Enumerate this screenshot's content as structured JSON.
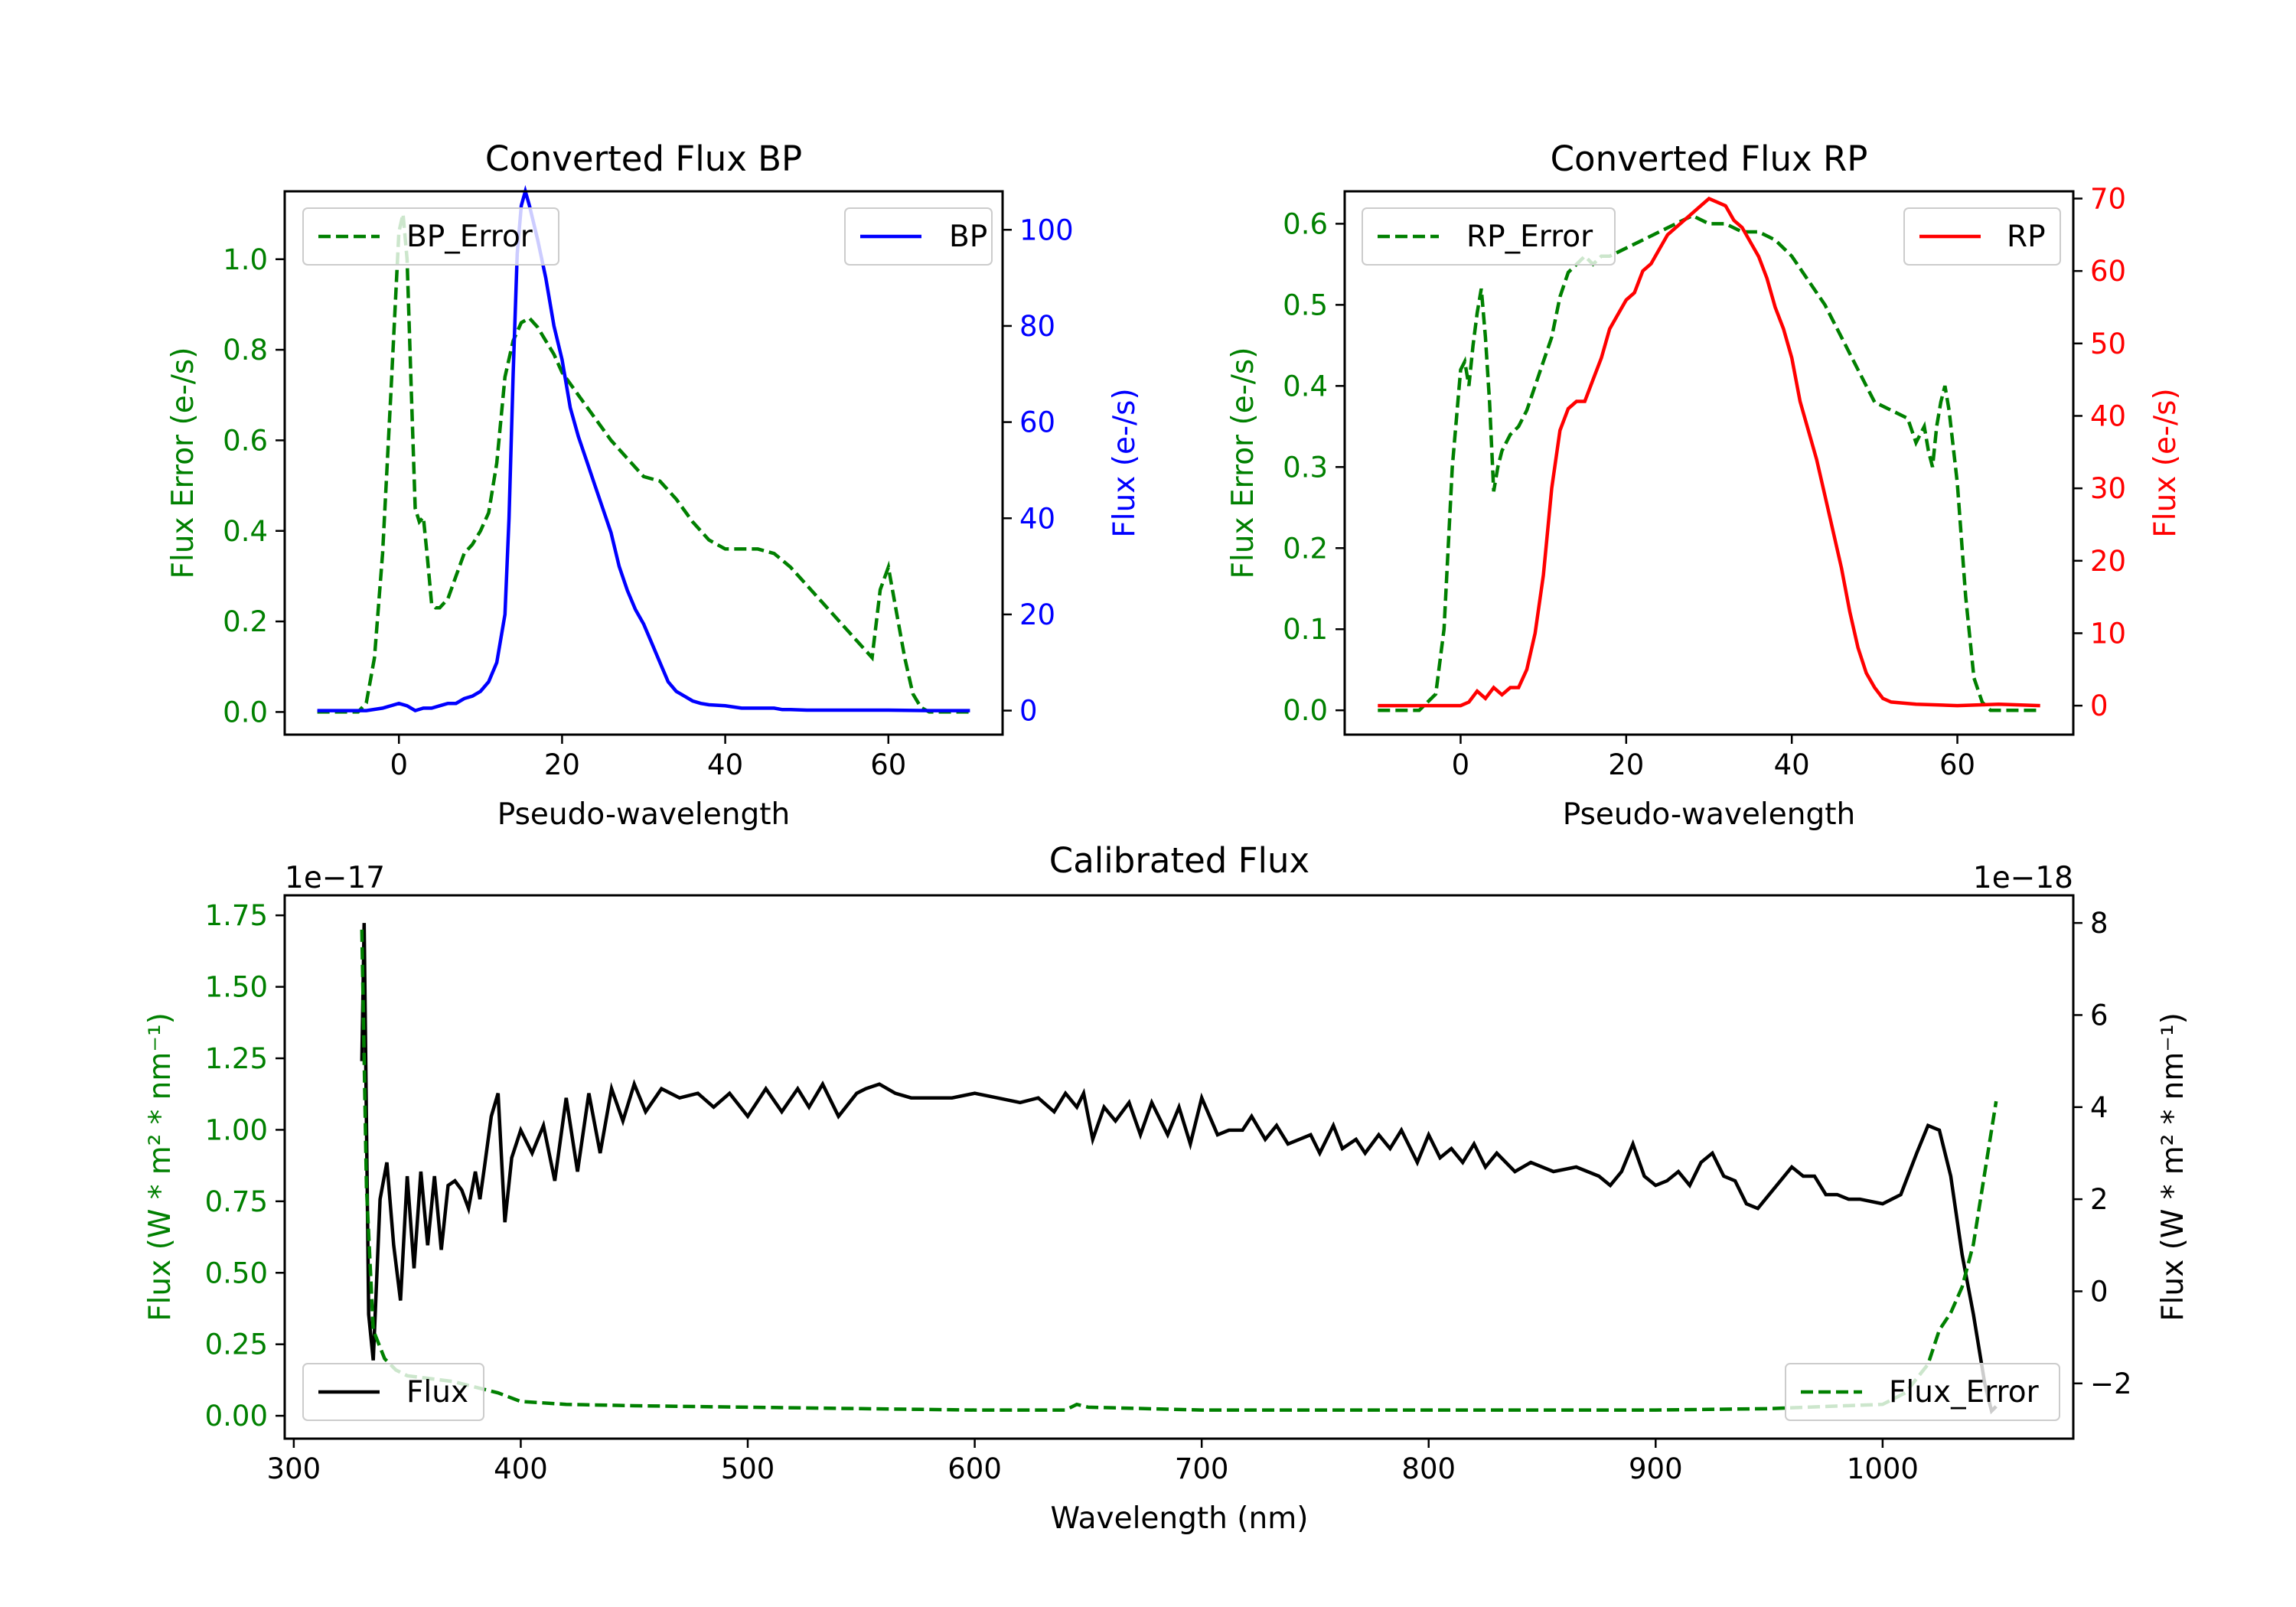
{
  "colors": {
    "error": "#008000",
    "bp": "#0000ff",
    "rp": "#ff0000",
    "flux": "#000000",
    "axis": "#000000"
  },
  "chart_data": [
    {
      "id": "bp",
      "type": "line",
      "title": "Converted Flux BP",
      "xlabel": "Pseudo-wavelength",
      "ylabel_left": "Flux Error (e-/s)",
      "ylabel_right": "Flux (e-/s)",
      "xlim": [
        -14,
        74
      ],
      "ylim_left": [
        -0.05,
        1.15
      ],
      "ylim_right": [
        -5,
        108
      ],
      "xticks": [
        0,
        20,
        40,
        60
      ],
      "yticks_left": [
        0.0,
        0.2,
        0.4,
        0.6,
        0.8,
        1.0
      ],
      "yticks_left_labels": [
        "0.0",
        "0.2",
        "0.4",
        "0.6",
        "0.8",
        "1.0"
      ],
      "yticks_right": [
        0,
        20,
        40,
        60,
        80,
        100
      ],
      "yticks_right_labels": [
        "0",
        "20",
        "40",
        "60",
        "80",
        "100"
      ],
      "legend_left": {
        "label": "BP_Error",
        "position": "upper-left"
      },
      "legend_right": {
        "label": "BP",
        "position": "upper-right"
      },
      "series": [
        {
          "name": "BP_Error",
          "axis": "left",
          "style": "dashed",
          "color_key": "error",
          "x": [
            -10,
            -5,
            -4,
            -3,
            -2,
            -1,
            0,
            0.5,
            1,
            1.5,
            2,
            2.5,
            3,
            3.5,
            4,
            4.5,
            5,
            5.5,
            6,
            7,
            8,
            9,
            10,
            11,
            12,
            13,
            14,
            15,
            16,
            17,
            18,
            19,
            20,
            22,
            24,
            26,
            28,
            30,
            32,
            34,
            36,
            38,
            40,
            42,
            44,
            46,
            48,
            50,
            52,
            54,
            56,
            57,
            58,
            59,
            60,
            61,
            62,
            63,
            64,
            65,
            70
          ],
          "values": [
            0,
            0,
            0.02,
            0.12,
            0.35,
            0.7,
            1.06,
            1.1,
            1.0,
            0.72,
            0.45,
            0.42,
            0.43,
            0.34,
            0.24,
            0.23,
            0.23,
            0.24,
            0.25,
            0.3,
            0.35,
            0.37,
            0.4,
            0.44,
            0.55,
            0.74,
            0.82,
            0.86,
            0.87,
            0.85,
            0.82,
            0.79,
            0.75,
            0.7,
            0.65,
            0.6,
            0.56,
            0.52,
            0.51,
            0.47,
            0.42,
            0.38,
            0.36,
            0.36,
            0.36,
            0.35,
            0.32,
            0.28,
            0.24,
            0.2,
            0.16,
            0.14,
            0.12,
            0.27,
            0.32,
            0.22,
            0.12,
            0.04,
            0.01,
            0,
            0
          ]
        },
        {
          "name": "BP",
          "axis": "right",
          "style": "solid",
          "color_key": "bp",
          "x": [
            -10,
            -4,
            -2,
            0,
            1,
            2,
            3,
            4,
            5,
            6,
            7,
            8,
            9,
            10,
            11,
            12,
            13,
            13.5,
            14,
            14.5,
            15,
            15.5,
            16,
            17,
            18,
            19,
            20,
            21,
            22,
            23,
            24,
            25,
            26,
            27,
            28,
            29,
            30,
            31,
            32,
            33,
            34,
            35,
            36,
            37,
            38,
            40,
            42,
            44,
            46,
            47,
            48,
            50,
            55,
            60,
            65,
            70
          ],
          "values": [
            0,
            0,
            0.5,
            1.5,
            1,
            0,
            0.5,
            0.5,
            1,
            1.5,
            1.5,
            2.5,
            3,
            4,
            6,
            10,
            20,
            40,
            70,
            95,
            105,
            108,
            105,
            98,
            90,
            80,
            73,
            63,
            57,
            52,
            47,
            42,
            37,
            30,
            25,
            21,
            18,
            14,
            10,
            6,
            4,
            3,
            2,
            1.5,
            1.2,
            1.0,
            0.5,
            0.5,
            0.5,
            0.2,
            0.2,
            0.1,
            0.1,
            0.1,
            0,
            0
          ]
        }
      ]
    },
    {
      "id": "rp",
      "type": "line",
      "title": "Converted Flux RP",
      "xlabel": "Pseudo-wavelength",
      "ylabel_left": "Flux Error (e-/s)",
      "ylabel_right": "Flux (e-/s)",
      "xlim": [
        -14,
        74
      ],
      "ylim_left": [
        -0.03,
        0.64
      ],
      "ylim_right": [
        -4,
        71
      ],
      "xticks": [
        0,
        20,
        40,
        60
      ],
      "yticks_left": [
        0.0,
        0.1,
        0.2,
        0.3,
        0.4,
        0.5,
        0.6
      ],
      "yticks_left_labels": [
        "0.0",
        "0.1",
        "0.2",
        "0.3",
        "0.4",
        "0.5",
        "0.6"
      ],
      "yticks_right": [
        0,
        10,
        20,
        30,
        40,
        50,
        60,
        70
      ],
      "yticks_right_labels": [
        "0",
        "10",
        "20",
        "30",
        "40",
        "50",
        "60",
        "70"
      ],
      "legend_left": {
        "label": "RP_Error",
        "position": "upper-left"
      },
      "legend_right": {
        "label": "RP",
        "position": "upper-right"
      },
      "series": [
        {
          "name": "RP_Error",
          "axis": "left",
          "style": "dashed",
          "color_key": "error",
          "x": [
            -10,
            -5,
            -3,
            -2,
            -1,
            0,
            0.5,
            1,
            1.5,
            2,
            2.5,
            3,
            3.5,
            4,
            4.5,
            5,
            6,
            7,
            8,
            9,
            10,
            11,
            12,
            13,
            14,
            15,
            16,
            17,
            18,
            20,
            22,
            24,
            26,
            28,
            30,
            32,
            34,
            36,
            38,
            40,
            42,
            44,
            46,
            48,
            50,
            52,
            54,
            55,
            56,
            56.5,
            57,
            57.5,
            58,
            58.5,
            59,
            60,
            61,
            62,
            63,
            64,
            65,
            70
          ],
          "values": [
            0,
            0,
            0.02,
            0.1,
            0.3,
            0.42,
            0.43,
            0.4,
            0.45,
            0.49,
            0.52,
            0.46,
            0.38,
            0.27,
            0.3,
            0.32,
            0.34,
            0.35,
            0.37,
            0.4,
            0.43,
            0.46,
            0.51,
            0.54,
            0.55,
            0.56,
            0.55,
            0.56,
            0.56,
            0.57,
            0.58,
            0.59,
            0.6,
            0.61,
            0.6,
            0.6,
            0.59,
            0.59,
            0.58,
            0.56,
            0.53,
            0.5,
            0.46,
            0.42,
            0.38,
            0.37,
            0.36,
            0.33,
            0.35,
            0.32,
            0.3,
            0.35,
            0.38,
            0.4,
            0.37,
            0.28,
            0.14,
            0.04,
            0.01,
            0,
            0,
            0
          ]
        },
        {
          "name": "RP",
          "axis": "right",
          "style": "solid",
          "color_key": "rp",
          "x": [
            -10,
            -2,
            0,
            1,
            2,
            3,
            4,
            5,
            6,
            7,
            8,
            9,
            10,
            11,
            12,
            13,
            14,
            15,
            16,
            17,
            18,
            19,
            20,
            21,
            22,
            23,
            24,
            25,
            26,
            27,
            28,
            29,
            30,
            31,
            32,
            33,
            34,
            35,
            36,
            37,
            38,
            39,
            40,
            41,
            42,
            43,
            44,
            45,
            46,
            47,
            48,
            49,
            50,
            51,
            52,
            55,
            60,
            65,
            70
          ],
          "values": [
            0,
            0,
            0,
            0.5,
            2,
            1,
            2.5,
            1.5,
            2.5,
            2.5,
            5,
            10,
            18,
            30,
            38,
            41,
            42,
            42,
            45,
            48,
            52,
            54,
            56,
            57,
            60,
            61,
            63,
            65,
            66,
            67,
            68,
            69,
            70,
            69.5,
            69,
            67,
            66,
            64,
            62,
            59,
            55,
            52,
            48,
            42,
            38,
            34,
            29,
            24,
            19,
            13,
            8,
            4.5,
            2.5,
            1,
            0.5,
            0.2,
            0,
            0.2,
            0
          ]
        }
      ]
    },
    {
      "id": "cal",
      "type": "line",
      "title": "Calibrated Flux",
      "xlabel": "Wavelength (nm)",
      "ylabel_left": "Flux (W * m² * nm⁻¹)",
      "ylabel_right": "Flux (W * m² * nm⁻¹)",
      "offset_left": "1e−17",
      "offset_right": "1e−18",
      "xlim": [
        296,
        1084
      ],
      "ylim_left": [
        -0.08,
        1.82
      ],
      "ylim_right": [
        -3.2,
        8.6
      ],
      "xticks": [
        300,
        400,
        500,
        600,
        700,
        800,
        900,
        1000
      ],
      "yticks_left": [
        0.0,
        0.25,
        0.5,
        0.75,
        1.0,
        1.25,
        1.5,
        1.75
      ],
      "yticks_left_labels": [
        "0.00",
        "0.25",
        "0.50",
        "0.75",
        "1.00",
        "1.25",
        "1.50",
        "1.75"
      ],
      "yticks_right": [
        -2,
        0,
        2,
        4,
        6,
        8
      ],
      "yticks_right_labels": [
        "−2",
        "0",
        "2",
        "4",
        "6",
        "8"
      ],
      "legend_left": {
        "label": "Flux",
        "position": "lower-left"
      },
      "legend_right": {
        "label": "Flux_Error",
        "position": "lower-right"
      },
      "series": [
        {
          "name": "Flux",
          "axis": "right",
          "style": "solid",
          "color_key": "flux",
          "x": [
            330,
            331,
            333,
            335,
            338,
            341,
            344,
            347,
            350,
            353,
            356,
            359,
            362,
            365,
            368,
            371,
            374,
            377,
            380,
            382,
            384,
            387,
            390,
            393,
            396,
            400,
            405,
            410,
            415,
            420,
            425,
            430,
            435,
            440,
            445,
            450,
            455,
            462,
            470,
            478,
            485,
            492,
            500,
            508,
            515,
            522,
            527,
            533,
            540,
            548,
            552,
            558,
            565,
            572,
            580,
            590,
            600,
            610,
            620,
            628,
            635,
            640,
            645,
            648,
            652,
            657,
            662,
            668,
            673,
            678,
            685,
            690,
            695,
            700,
            707,
            712,
            718,
            722,
            728,
            733,
            738,
            743,
            748,
            752,
            758,
            762,
            768,
            772,
            778,
            783,
            788,
            795,
            800,
            805,
            810,
            815,
            820,
            825,
            830,
            838,
            845,
            855,
            865,
            875,
            880,
            885,
            890,
            895,
            900,
            905,
            910,
            915,
            920,
            925,
            930,
            935,
            940,
            945,
            950,
            955,
            960,
            965,
            970,
            975,
            980,
            985,
            990,
            1000,
            1008,
            1015,
            1020,
            1025,
            1030,
            1035,
            1040,
            1045,
            1048,
            1050
          ],
          "values": [
            5.0,
            8.0,
            -0.5,
            -1.5,
            2.0,
            2.8,
            1.0,
            -0.2,
            2.5,
            0.5,
            2.6,
            1.0,
            2.5,
            0.9,
            2.3,
            2.4,
            2.2,
            1.8,
            2.6,
            2.0,
            2.7,
            3.8,
            4.3,
            1.5,
            2.9,
            3.5,
            3.0,
            3.6,
            2.4,
            4.2,
            2.6,
            4.3,
            3.0,
            4.4,
            3.7,
            4.5,
            3.9,
            4.4,
            4.2,
            4.3,
            4.0,
            4.3,
            3.8,
            4.4,
            3.9,
            4.4,
            4.0,
            4.5,
            3.8,
            4.3,
            4.4,
            4.5,
            4.3,
            4.2,
            4.2,
            4.2,
            4.3,
            4.2,
            4.1,
            4.2,
            3.9,
            4.3,
            4.0,
            4.3,
            3.3,
            4.0,
            3.7,
            4.1,
            3.4,
            4.1,
            3.4,
            4.0,
            3.2,
            4.2,
            3.4,
            3.5,
            3.5,
            3.8,
            3.3,
            3.6,
            3.2,
            3.3,
            3.4,
            3.0,
            3.6,
            3.1,
            3.3,
            3.0,
            3.4,
            3.1,
            3.5,
            2.8,
            3.4,
            2.9,
            3.1,
            2.8,
            3.2,
            2.7,
            3.0,
            2.6,
            2.8,
            2.6,
            2.7,
            2.5,
            2.3,
            2.6,
            3.2,
            2.5,
            2.3,
            2.4,
            2.6,
            2.3,
            2.8,
            3.0,
            2.5,
            2.4,
            1.9,
            1.8,
            2.1,
            2.4,
            2.7,
            2.5,
            2.5,
            2.1,
            2.1,
            2.0,
            2.0,
            1.9,
            2.1,
            3.0,
            3.6,
            3.5,
            2.5,
            0.8,
            -0.5,
            -2.0,
            -2.6,
            -2.5
          ]
        },
        {
          "name": "Flux_Error",
          "axis": "left",
          "style": "dashed",
          "color_key": "error",
          "x": [
            330,
            332,
            335,
            340,
            345,
            350,
            360,
            370,
            380,
            390,
            400,
            420,
            450,
            500,
            550,
            600,
            630,
            640,
            645,
            650,
            700,
            750,
            800,
            850,
            900,
            950,
            1000,
            1010,
            1020,
            1025,
            1030,
            1035,
            1040,
            1045,
            1050
          ],
          "values": [
            1.7,
            0.8,
            0.3,
            0.2,
            0.16,
            0.14,
            0.13,
            0.12,
            0.1,
            0.08,
            0.05,
            0.04,
            0.035,
            0.03,
            0.025,
            0.02,
            0.02,
            0.02,
            0.04,
            0.03,
            0.02,
            0.02,
            0.02,
            0.02,
            0.02,
            0.025,
            0.04,
            0.08,
            0.18,
            0.3,
            0.36,
            0.45,
            0.6,
            0.85,
            1.1
          ]
        }
      ]
    }
  ]
}
